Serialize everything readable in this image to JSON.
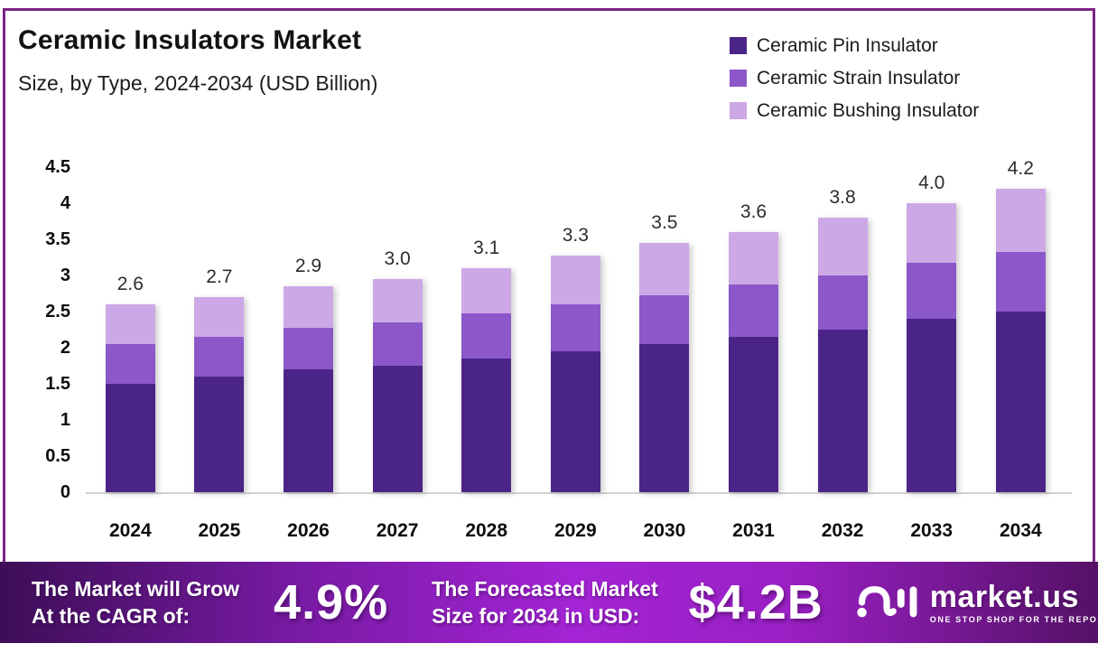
{
  "header": {
    "title": "Ceramic Insulators Market",
    "subtitle": "Size, by Type, 2024-2034 (USD Billion)"
  },
  "chart_data": {
    "type": "bar",
    "stacked": true,
    "title": "Ceramic Insulators Market Size, by Type, 2024-2034 (USD Billion)",
    "categories": [
      "2024",
      "2025",
      "2026",
      "2027",
      "2028",
      "2029",
      "2030",
      "2031",
      "2032",
      "2033",
      "2034"
    ],
    "series": [
      {
        "name": "Ceramic Pin Insulator",
        "color": "#4a2486",
        "values": [
          1.5,
          1.6,
          1.7,
          1.75,
          1.85,
          1.95,
          2.05,
          2.15,
          2.25,
          2.4,
          2.5
        ]
      },
      {
        "name": "Ceramic Strain Insulator",
        "color": "#8b57c9",
        "values": [
          0.55,
          0.55,
          0.57,
          0.6,
          0.62,
          0.65,
          0.67,
          0.72,
          0.75,
          0.77,
          0.82
        ]
      },
      {
        "name": "Ceramic Bushing Insulator",
        "color": "#cda8e6",
        "values": [
          0.55,
          0.55,
          0.58,
          0.6,
          0.63,
          0.68,
          0.73,
          0.73,
          0.8,
          0.83,
          0.88
        ]
      }
    ],
    "total_labels": [
      "2.6",
      "2.7",
      "2.9",
      "3.0",
      "3.1",
      "3.3",
      "3.5",
      "3.6",
      "3.8",
      "4.0",
      "4.2"
    ],
    "y_ticks": [
      "4.5",
      "4",
      "3.5",
      "3",
      "2.5",
      "2",
      "1.5",
      "1",
      "0.5",
      "0"
    ],
    "ylim": [
      0,
      4.5
    ],
    "xlabel": "",
    "ylabel": "",
    "grid": false,
    "legend_position": "top-right"
  },
  "banner": {
    "cagr": {
      "line1": "The Market will Grow",
      "line2": "At the CAGR of:",
      "value": "4.9%"
    },
    "forecast": {
      "line1": "The Forecasted Market",
      "line2": "Size for 2034 in USD:",
      "value": "$4.2B"
    },
    "logo": {
      "name": "market.us",
      "tagline": "ONE STOP SHOP FOR THE REPORTS"
    }
  },
  "colors": {
    "frame_border": "#7b2483",
    "axis_line": "#d2d2d2",
    "banner_gradient_left": "#3d0e57",
    "banner_gradient_mid": "#a324d4",
    "banner_gradient_right": "#541166"
  }
}
